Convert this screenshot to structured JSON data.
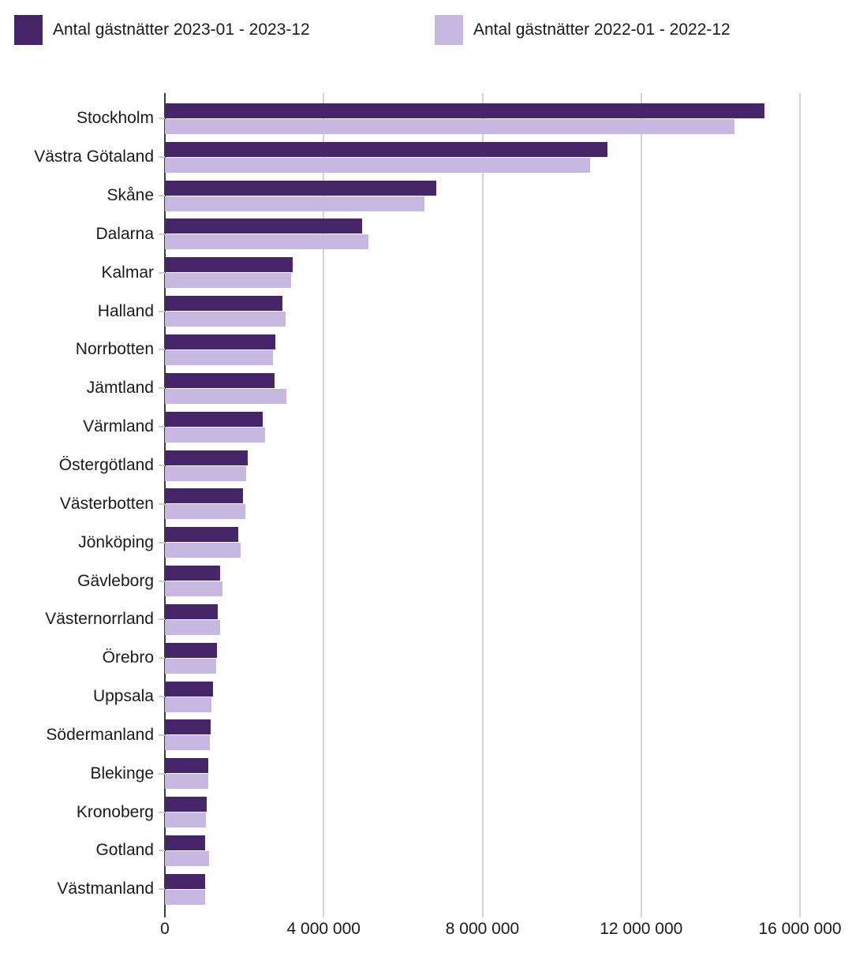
{
  "legend": {
    "items": [
      {
        "label": "Antal gästnätter 2023-01 - 2023-12",
        "color": "#472569"
      },
      {
        "label": "Antal gästnätter 2022-01 - 2022-12",
        "color": "#c7b8e2"
      }
    ]
  },
  "chart_data": {
    "type": "bar",
    "orientation": "horizontal",
    "title": "",
    "xlabel": "",
    "ylabel": "",
    "grid": true,
    "legend_position": "top",
    "xlim": [
      0,
      16000000
    ],
    "x_ticks": [
      {
        "value": 0,
        "label": "0"
      },
      {
        "value": 4000000,
        "label": "4 000 000"
      },
      {
        "value": 8000000,
        "label": "8 000 000"
      },
      {
        "value": 12000000,
        "label": "12 000 000"
      },
      {
        "value": 16000000,
        "label": "16 000 000"
      }
    ],
    "categories": [
      "Stockholm",
      "Västra Götaland",
      "Skåne",
      "Dalarna",
      "Kalmar",
      "Halland",
      "Norrbotten",
      "Jämtland",
      "Värmland",
      "Östergötland",
      "Västerbotten",
      "Jönköping",
      "Gävleborg",
      "Västernorrland",
      "Örebro",
      "Uppsala",
      "Södermanland",
      "Blekinge",
      "Kronoberg",
      "Gotland",
      "Västmanland"
    ],
    "series": [
      {
        "name": "Antal gästnätter 2023-01 - 2023-12",
        "color": "#472569",
        "values": [
          15100000,
          11150000,
          6830000,
          4970000,
          3210000,
          2960000,
          2780000,
          2760000,
          2460000,
          2080000,
          1970000,
          1840000,
          1400000,
          1330000,
          1310000,
          1220000,
          1150000,
          1090000,
          1050000,
          1010000,
          1010000
        ]
      },
      {
        "name": "Antal gästnätter 2022-01 - 2022-12",
        "color": "#c7b8e2",
        "values": [
          14350000,
          10720000,
          6530000,
          5130000,
          3190000,
          3050000,
          2720000,
          3060000,
          2520000,
          2050000,
          2030000,
          1900000,
          1460000,
          1390000,
          1300000,
          1170000,
          1130000,
          1090000,
          1030000,
          1110000,
          1020000
        ]
      }
    ],
    "colors": {
      "axis": "#3a3a3a",
      "gridline": "#d3d3d3",
      "text": "#1a1a1a"
    }
  }
}
